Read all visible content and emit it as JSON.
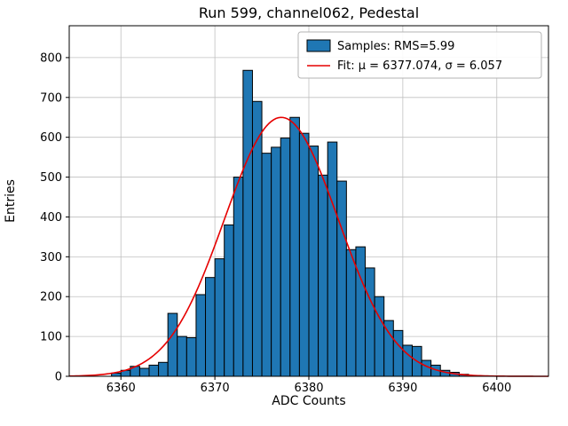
{
  "title": "Run 599, channel062, Pedestal",
  "chart_data": {
    "type": "bar",
    "subtype": "histogram-with-gaussian-fit",
    "title": "Run 599, channel062, Pedestal",
    "xlabel": "ADC Counts",
    "ylabel": "Entries",
    "xlim": [
      6354.5,
      6405.5
    ],
    "ylim": [
      0,
      880
    ],
    "xticks": [
      6360,
      6370,
      6380,
      6390,
      6400
    ],
    "yticks": [
      0,
      100,
      200,
      300,
      400,
      500,
      600,
      700,
      800
    ],
    "grid": true,
    "bin_width": 1,
    "bin_left_edges": [
      6359,
      6360,
      6361,
      6362,
      6363,
      6364,
      6365,
      6366,
      6367,
      6368,
      6369,
      6370,
      6371,
      6372,
      6373,
      6374,
      6375,
      6376,
      6377,
      6378,
      6379,
      6380,
      6381,
      6382,
      6383,
      6384,
      6385,
      6386,
      6387,
      6388,
      6389,
      6390,
      6391,
      6392,
      6393,
      6394,
      6395,
      6396
    ],
    "values": [
      8,
      15,
      25,
      20,
      28,
      35,
      158,
      100,
      97,
      205,
      248,
      295,
      380,
      500,
      768,
      690,
      560,
      575,
      598,
      650,
      610,
      578,
      505,
      588,
      490,
      318,
      325,
      272,
      200,
      140,
      115,
      78,
      75,
      40,
      28,
      15,
      10,
      5
    ],
    "bar_color": "#1f77b4",
    "bar_edge_color": "#000000",
    "grid_color": "#c0c0c0",
    "fit": {
      "mu": 6377.074,
      "sigma": 6.057,
      "amplitude": 650,
      "color": "#e60000"
    },
    "legend": {
      "position": "upper-right",
      "entries": [
        {
          "label": "Samples: RMS=5.99",
          "type": "patch",
          "color": "#1f77b4"
        },
        {
          "label": "Fit: μ = 6377.074, σ = 6.057",
          "type": "line",
          "color": "#e60000"
        }
      ]
    }
  }
}
